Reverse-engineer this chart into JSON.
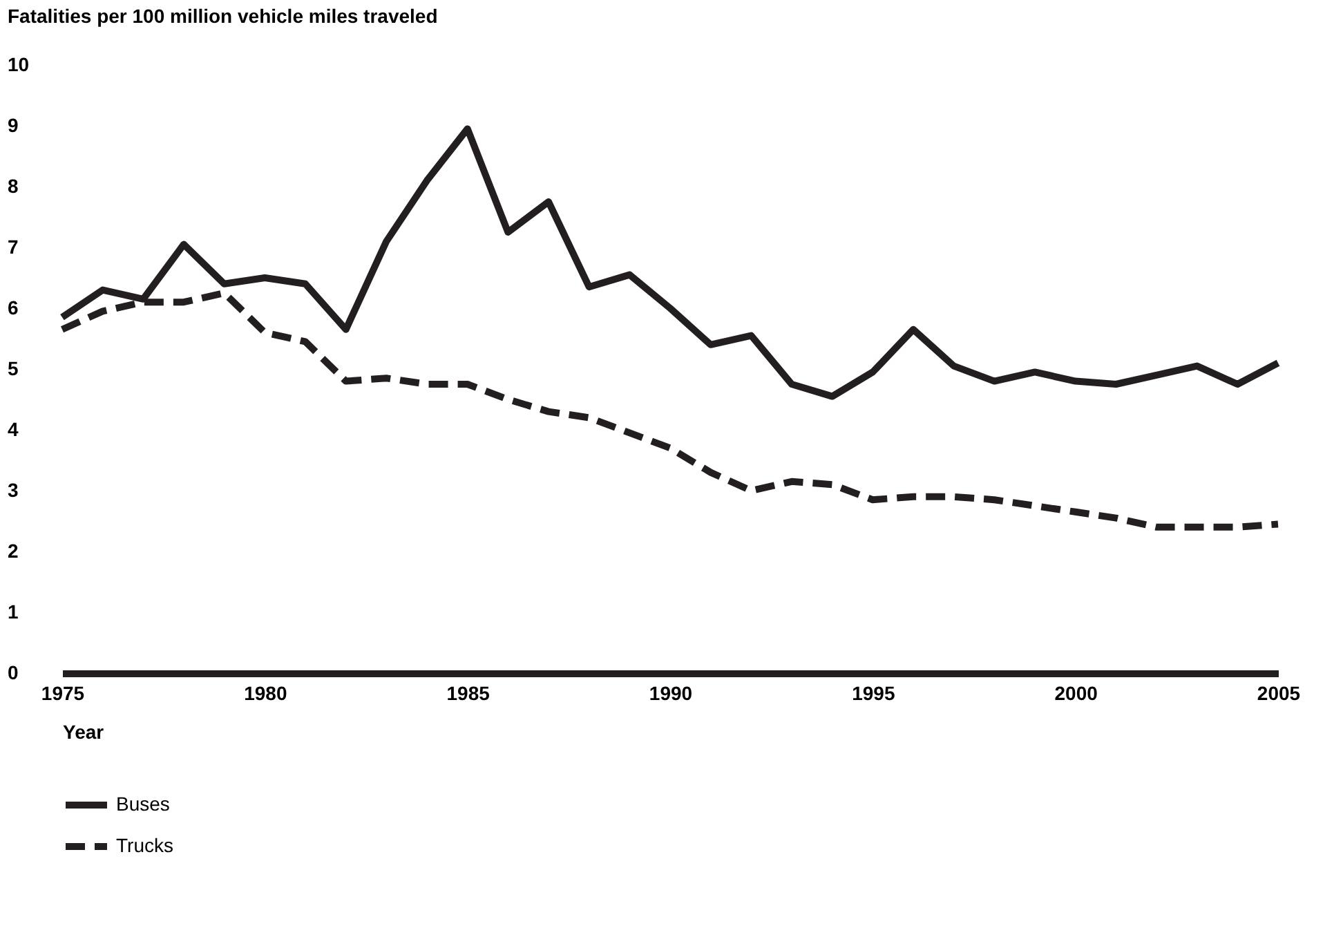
{
  "chart_data": {
    "type": "line",
    "ylabel": "Fatalities per 100 million vehicle miles traveled",
    "xlabel": "Year",
    "x": [
      1975,
      1976,
      1977,
      1978,
      1979,
      1980,
      1981,
      1982,
      1983,
      1984,
      1985,
      1986,
      1987,
      1988,
      1989,
      1990,
      1991,
      1992,
      1993,
      1994,
      1995,
      1996,
      1997,
      1998,
      1999,
      2000,
      2001,
      2002,
      2003,
      2004,
      2005
    ],
    "series": [
      {
        "name": "Buses",
        "color": "#231f20",
        "line_style": "solid",
        "values": [
          5.85,
          6.3,
          6.15,
          7.05,
          6.4,
          6.5,
          6.4,
          5.65,
          7.1,
          8.1,
          8.95,
          7.25,
          7.75,
          6.35,
          6.55,
          6.0,
          5.4,
          5.55,
          4.75,
          4.55,
          4.95,
          5.65,
          5.05,
          4.8,
          4.95,
          4.8,
          4.75,
          4.9,
          5.05,
          4.75,
          5.1
        ]
      },
      {
        "name": "Trucks",
        "color": "#231f20",
        "line_style": "dashed",
        "values": [
          5.65,
          5.95,
          6.1,
          6.1,
          6.25,
          5.6,
          5.45,
          4.8,
          4.85,
          4.75,
          4.75,
          4.5,
          4.3,
          4.2,
          3.95,
          3.7,
          3.3,
          3.0,
          3.15,
          3.1,
          2.85,
          2.9,
          2.9,
          2.85,
          2.75,
          2.65,
          2.55,
          2.4,
          2.4,
          2.4,
          2.45
        ]
      }
    ],
    "xlim": [
      1975,
      2005
    ],
    "xticks": [
      1975,
      1980,
      1985,
      1990,
      1995,
      2000,
      2005
    ],
    "ylim": [
      0,
      10
    ],
    "yticks": [
      0,
      1,
      2,
      3,
      4,
      5,
      6,
      7,
      8,
      9,
      10
    ],
    "grid": false,
    "legend": "bottom left",
    "marker": "none"
  }
}
